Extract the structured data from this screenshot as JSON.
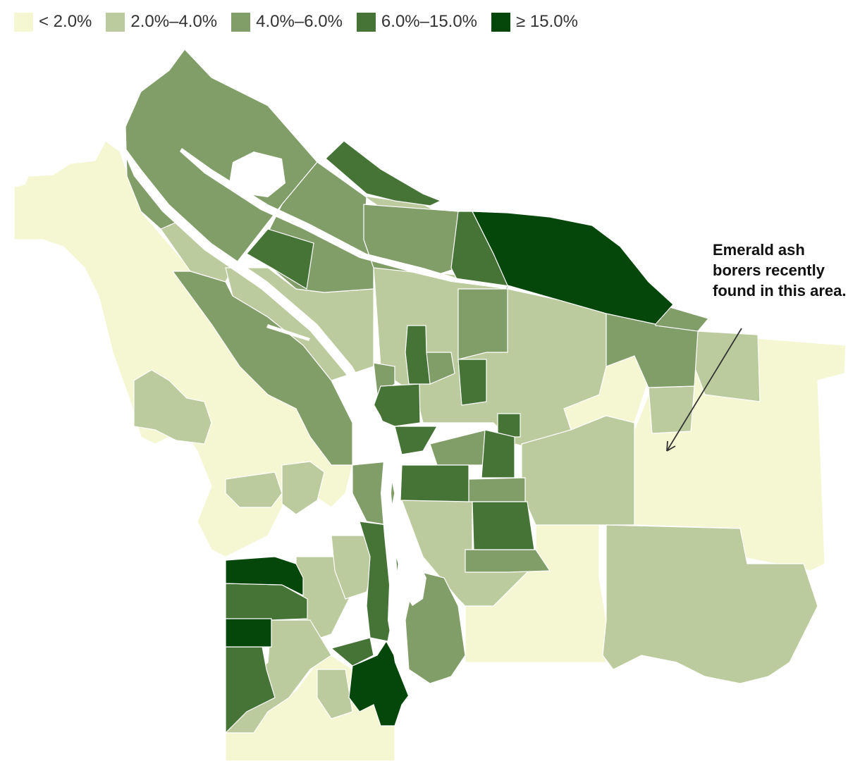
{
  "legend": {
    "items": [
      {
        "label": "< 2.0%",
        "color": "#f5f7d2"
      },
      {
        "label": "2.0%–4.0%",
        "color": "#bccb9d"
      },
      {
        "label": "4.0%–6.0%",
        "color": "#819d68"
      },
      {
        "label": "6.0%–15.0%",
        "color": "#467436"
      },
      {
        "label": "≥ 15.0%",
        "color": "#05460b"
      }
    ]
  },
  "annotation": {
    "text": "Emerald ash borers recently found in this area."
  }
}
